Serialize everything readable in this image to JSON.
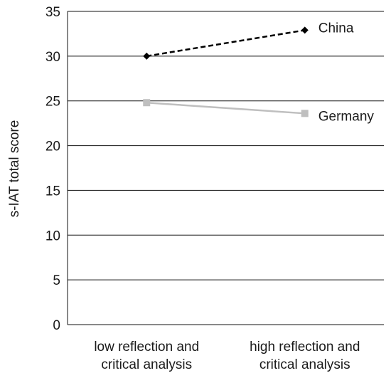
{
  "chart_data": {
    "type": "line",
    "categories": [
      [
        "low reflection and",
        "critical analysis"
      ],
      [
        "high reflection and",
        "critical analysis"
      ]
    ],
    "series": [
      {
        "name": "China",
        "values": [
          30.0,
          32.9
        ],
        "color": "#000000",
        "line_style": "dashed",
        "marker": "diamond"
      },
      {
        "name": "Germany",
        "values": [
          24.8,
          23.6
        ],
        "color": "#bfbfbf",
        "line_style": "solid",
        "marker": "square"
      }
    ],
    "ylabel": "s-IAT total score",
    "ylim": [
      0,
      35
    ],
    "yticks": [
      0,
      5,
      10,
      15,
      20,
      25,
      30,
      35
    ],
    "grid": true,
    "legend": "inline-labels"
  }
}
